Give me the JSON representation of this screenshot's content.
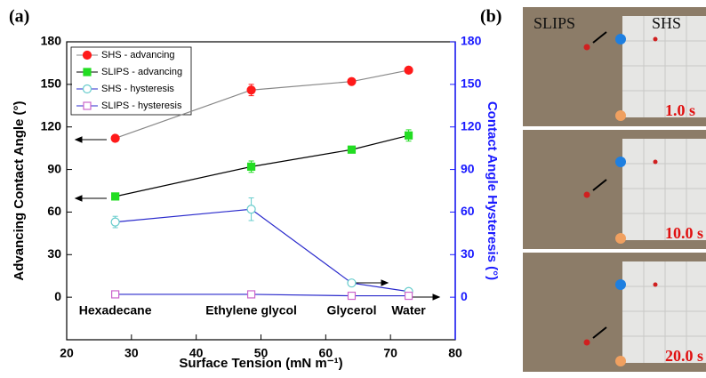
{
  "chart_data": {
    "type": "line",
    "panel_label": "(a)",
    "xlabel": "Surface Tension (mN m⁻¹)",
    "ylabel": "Advancing Contact Angle (°)",
    "y2label": "Contact Angle Hysteresis (°)",
    "x": [
      27.5,
      48.5,
      64,
      72.8
    ],
    "point_labels": [
      "Hexadecane",
      "Ethylene glycol",
      "Glycerol",
      "Water"
    ],
    "xlim": [
      20,
      80
    ],
    "xticks": [
      20,
      30,
      40,
      50,
      60,
      70,
      80
    ],
    "ylim": [
      -30,
      180
    ],
    "yticks": [
      0,
      30,
      60,
      90,
      120,
      150,
      180
    ],
    "y2lim": [
      -30,
      180
    ],
    "y2ticks": [
      0,
      30,
      60,
      90,
      120,
      150,
      180
    ],
    "y2_color": "#1a1aff",
    "legend": "upper left",
    "series": [
      {
        "name": "SHS - advancing",
        "marker": "circle",
        "filled": true,
        "color": "#ff1a1a",
        "line_color": "#888888",
        "values": [
          112,
          146,
          152,
          160
        ],
        "errors": [
          2,
          4,
          2,
          2
        ]
      },
      {
        "name": "SLIPS - advancing",
        "marker": "square",
        "filled": true,
        "color": "#22dd22",
        "line_color": "#000000",
        "values": [
          71,
          92,
          104,
          114
        ],
        "errors": [
          2,
          4,
          2,
          4
        ]
      },
      {
        "name": "SHS - hysteresis",
        "marker": "circle",
        "filled": false,
        "color": "#66cccc",
        "line_color": "#2a2acc",
        "axis": "y2",
        "values": [
          53,
          62,
          10,
          4
        ],
        "errors": [
          4,
          8,
          2,
          2
        ]
      },
      {
        "name": "SLIPS - hysteresis",
        "marker": "square",
        "filled": false,
        "color": "#cc66cc",
        "line_color": "#2a2acc",
        "axis": "y2",
        "values": [
          2,
          2,
          1,
          1
        ],
        "errors": [
          1,
          1,
          1,
          1
        ]
      }
    ]
  },
  "photos": {
    "panel_label": "(b)",
    "left_label": "SLIPS",
    "right_label": "SHS",
    "frames": [
      {
        "time": "1.0 s"
      },
      {
        "time": "10.0 s"
      },
      {
        "time": "20.0 s"
      }
    ]
  }
}
